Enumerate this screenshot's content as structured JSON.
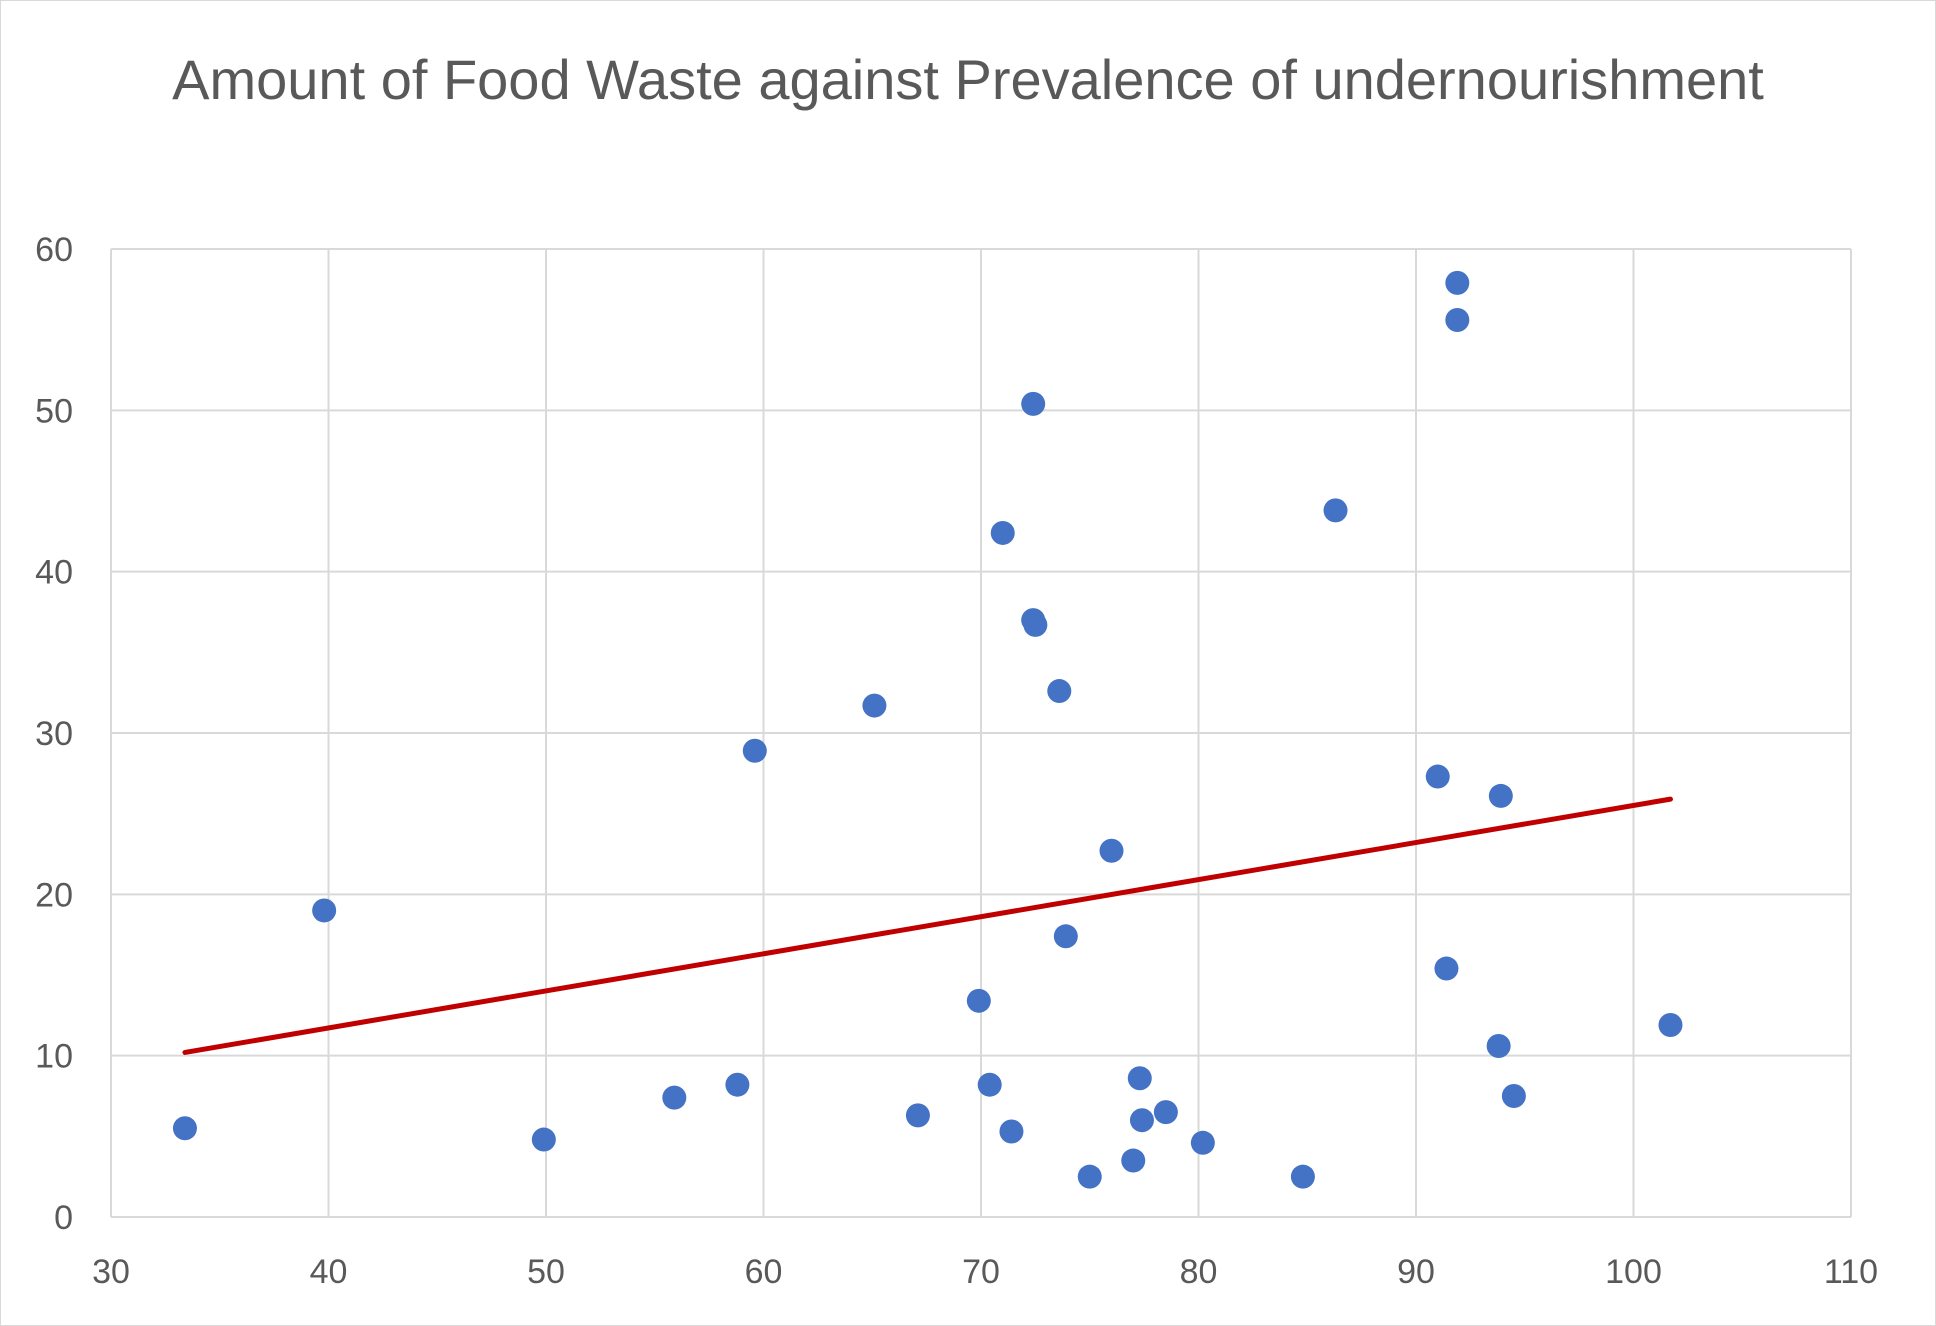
{
  "chart_data": {
    "type": "scatter",
    "title": "Amount of Food Waste against Prevalence of undernourishment",
    "xlim": [
      30,
      110
    ],
    "ylim": [
      0,
      60
    ],
    "x_ticks": [
      30,
      40,
      50,
      60,
      70,
      80,
      90,
      100,
      110
    ],
    "y_ticks": [
      0,
      10,
      20,
      30,
      40,
      50,
      60
    ],
    "grid": true,
    "legend": "none",
    "colors": {
      "points": "#4472C4",
      "trendline": "#C00000",
      "grid": "#d9d9d9"
    },
    "series": [
      {
        "points": [
          [
            33.4,
            5.5
          ],
          [
            39.8,
            19.0
          ],
          [
            49.9,
            4.8
          ],
          [
            55.9,
            7.4
          ],
          [
            58.8,
            8.2
          ],
          [
            59.6,
            28.9
          ],
          [
            65.1,
            31.7
          ],
          [
            67.1,
            6.3
          ],
          [
            69.9,
            13.4
          ],
          [
            70.4,
            8.2
          ],
          [
            71.0,
            42.4
          ],
          [
            71.4,
            5.3
          ],
          [
            72.4,
            50.4
          ],
          [
            72.4,
            37.0
          ],
          [
            72.5,
            36.7
          ],
          [
            73.6,
            32.6
          ],
          [
            73.9,
            17.4
          ],
          [
            75.0,
            2.5
          ],
          [
            76.0,
            22.7
          ],
          [
            77.0,
            3.5
          ],
          [
            77.3,
            8.6
          ],
          [
            77.4,
            6.0
          ],
          [
            78.5,
            6.5
          ],
          [
            80.2,
            4.6
          ],
          [
            84.8,
            2.5
          ],
          [
            86.3,
            43.8
          ],
          [
            91.0,
            27.3
          ],
          [
            91.4,
            15.4
          ],
          [
            91.9,
            57.9
          ],
          [
            91.9,
            55.6
          ],
          [
            93.8,
            10.6
          ],
          [
            93.9,
            26.1
          ],
          [
            94.5,
            7.5
          ],
          [
            101.7,
            11.9
          ]
        ]
      }
    ],
    "trendline": {
      "type": "linear",
      "x": [
        33.4,
        101.7
      ],
      "y": [
        10.2,
        25.9
      ]
    }
  }
}
